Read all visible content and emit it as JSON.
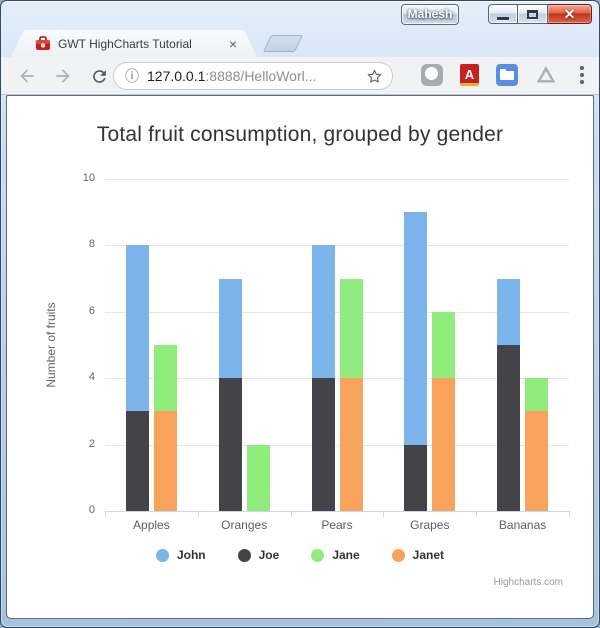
{
  "window": {
    "user_button": "Mahesh"
  },
  "tab": {
    "title": "GWT HighCharts Tutorial"
  },
  "toolbar": {
    "url_host": "127.0.0.1",
    "url_rest": ":8888/HelloWorl..."
  },
  "icons": {
    "tab_close": "×",
    "site_info": "ⓘ",
    "window_close": "✕"
  },
  "chart_data": {
    "type": "bar",
    "stacked": true,
    "title": "Total fruit consumption, grouped by gender",
    "ylabel": "Number of fruits",
    "ylim": [
      0,
      10
    ],
    "yticks": [
      0,
      2,
      4,
      6,
      8,
      10
    ],
    "categories": [
      "Apples",
      "Oranges",
      "Pears",
      "Grapes",
      "Bananas"
    ],
    "series": [
      {
        "name": "John",
        "stack": "male",
        "color": "#7cb5ec",
        "values": [
          5,
          3,
          4,
          7,
          2
        ]
      },
      {
        "name": "Joe",
        "stack": "male",
        "color": "#434348",
        "values": [
          3,
          4,
          4,
          2,
          5
        ]
      },
      {
        "name": "Jane",
        "stack": "female",
        "color": "#90ed7d",
        "values": [
          2,
          2,
          3,
          2,
          1
        ]
      },
      {
        "name": "Janet",
        "stack": "female",
        "color": "#f7a35c",
        "values": [
          3,
          0,
          4,
          4,
          3
        ]
      }
    ],
    "stack_totals": {
      "male": [
        8,
        7,
        8,
        9,
        7
      ],
      "female": [
        5,
        2,
        7,
        6,
        4
      ]
    },
    "grid": true,
    "legend_position": "bottom",
    "credits": "Highcharts.com"
  }
}
